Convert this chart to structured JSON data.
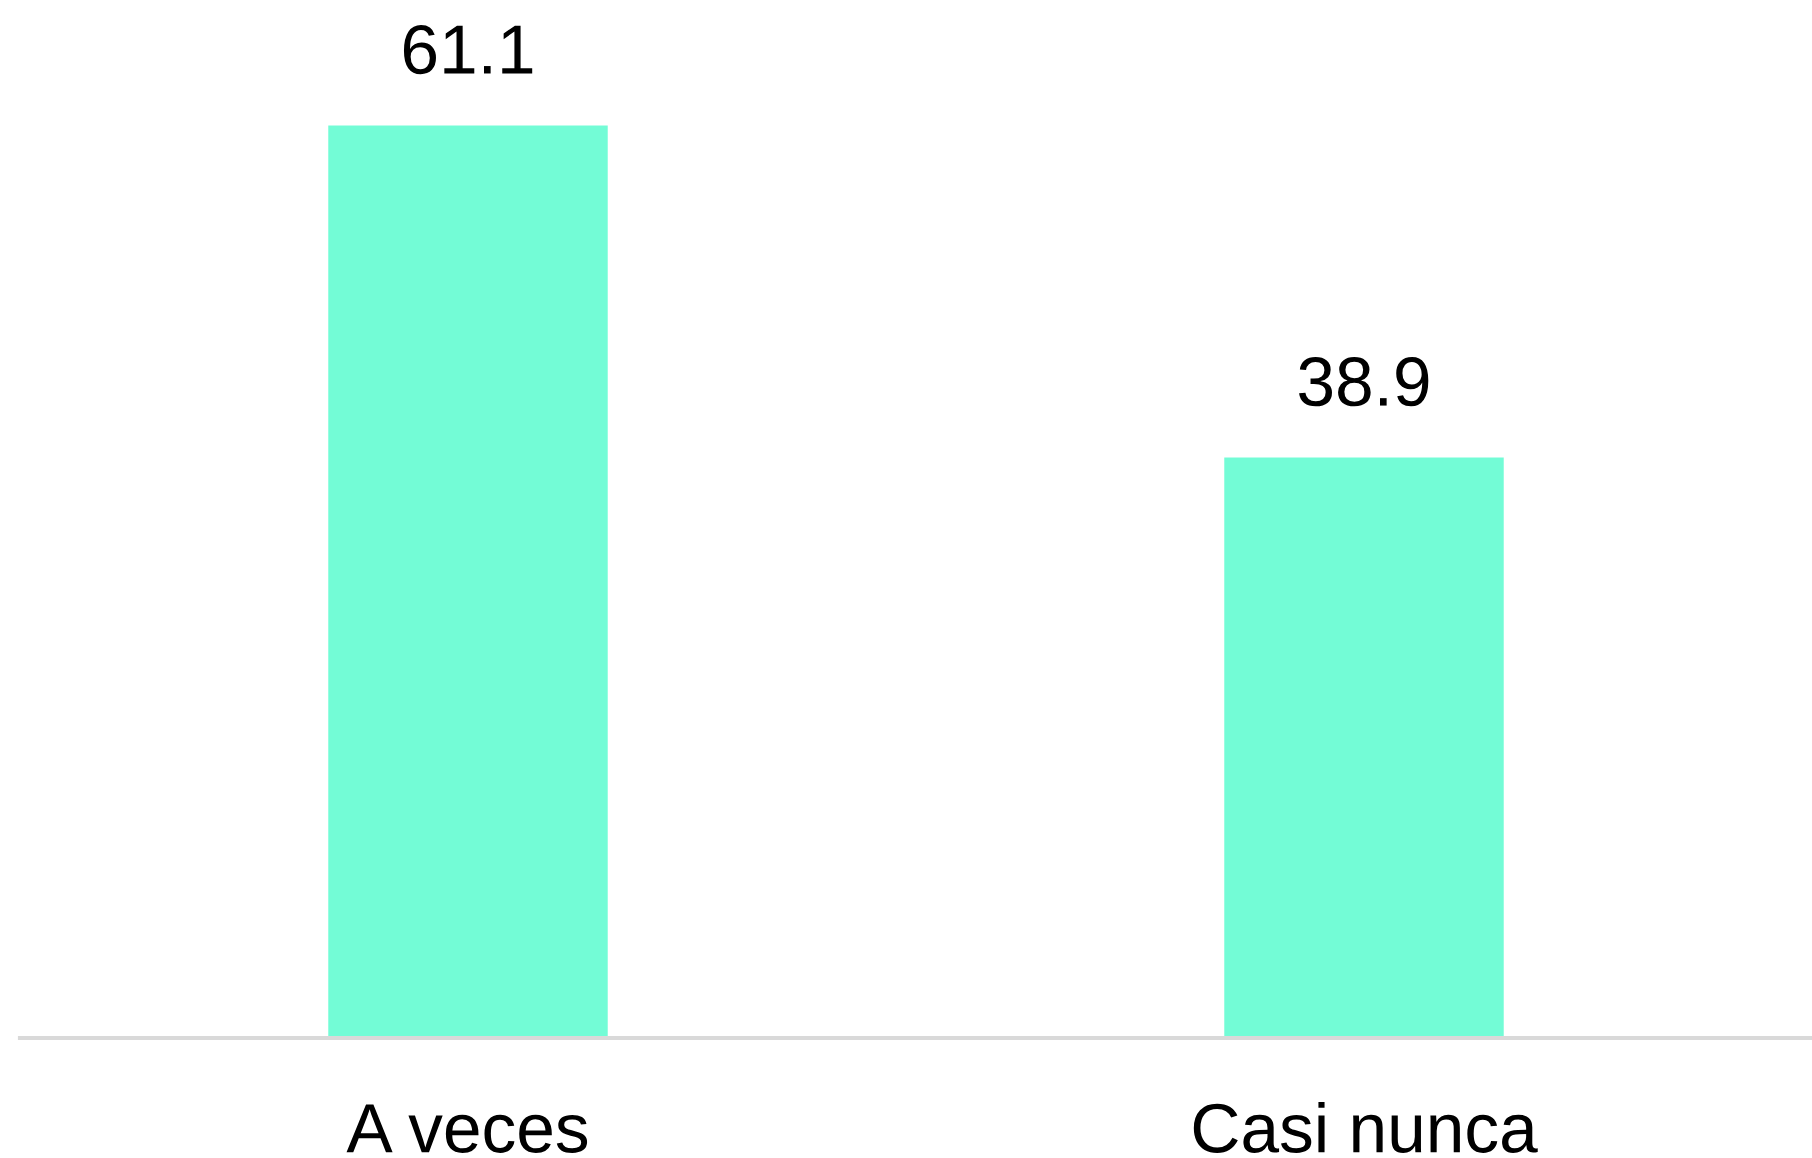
{
  "chart_data": {
    "type": "bar",
    "categories": [
      "A veces",
      "Casi nunca"
    ],
    "values": [
      61.1,
      38.9
    ],
    "color": "#73fcd6",
    "data_labels": true
  }
}
